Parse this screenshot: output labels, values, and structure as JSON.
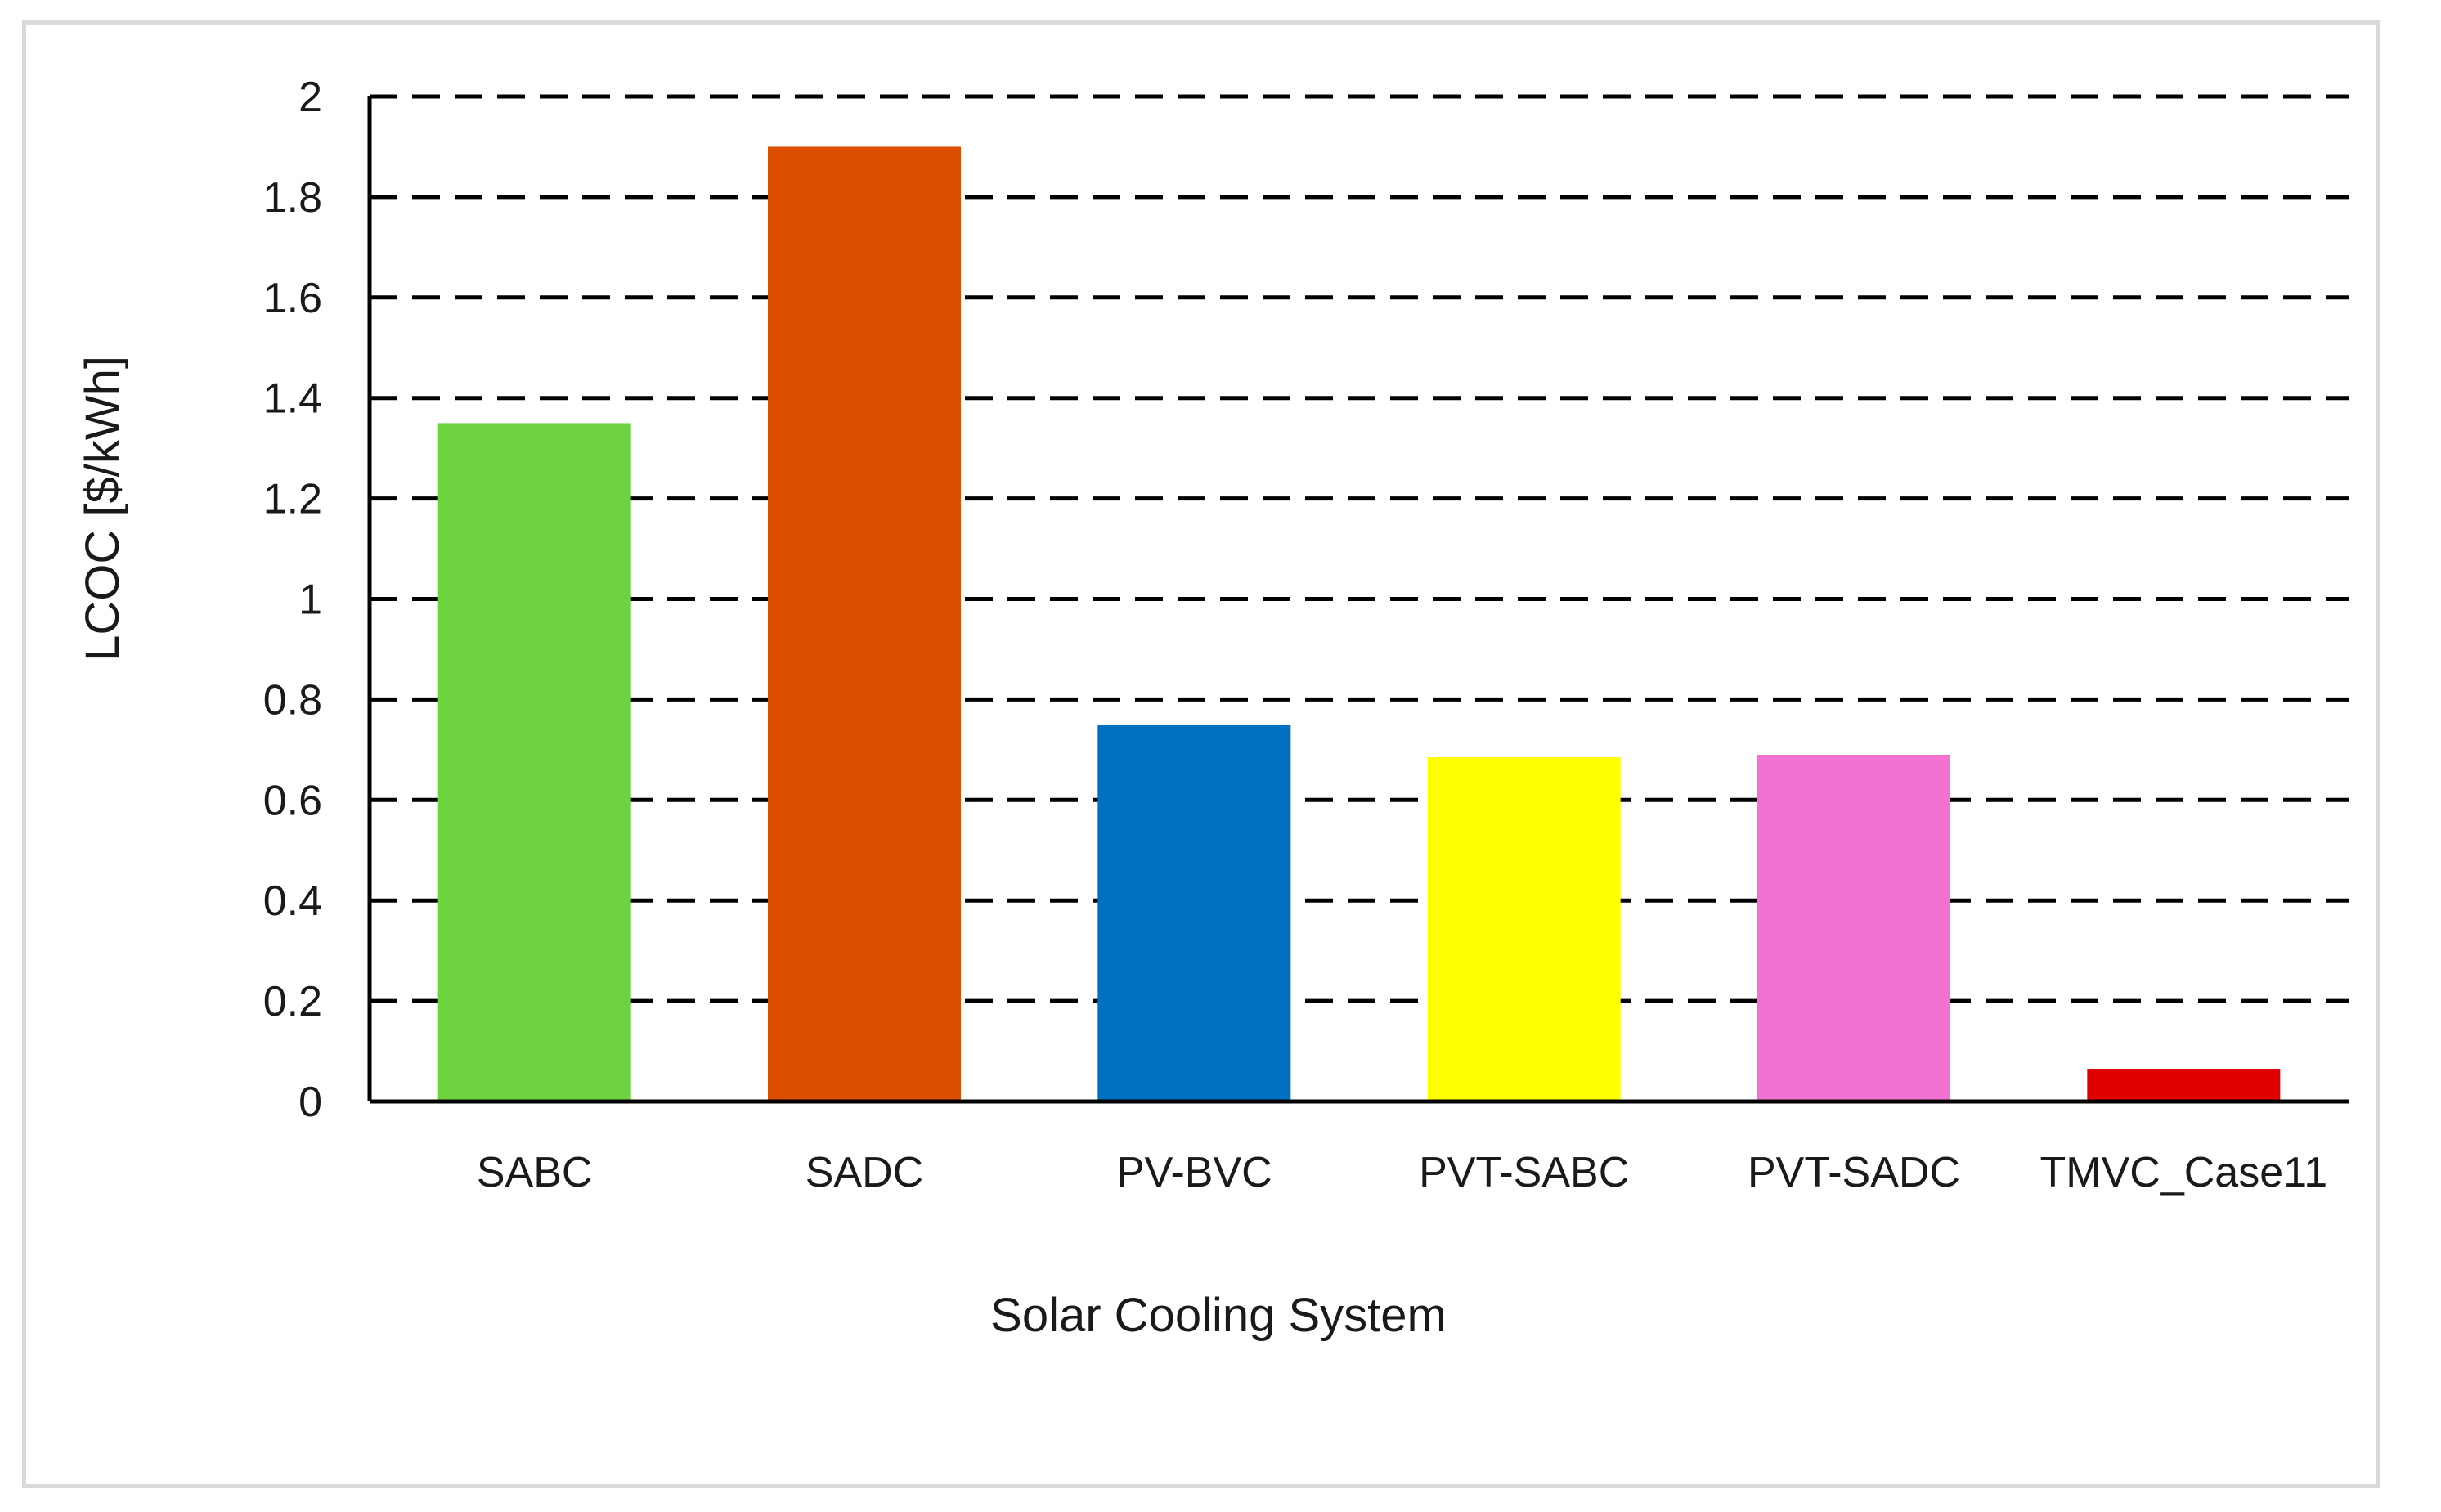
{
  "chart_data": {
    "type": "bar",
    "title": "",
    "xlabel": "Solar Cooling System",
    "ylabel": "LCOC [$/kWh]",
    "categories": [
      "SABC",
      "SADC",
      "PV-BVC",
      "PVT-SABC",
      "PVT-SADC",
      "TMVC_Case11"
    ],
    "values": [
      1.35,
      1.9,
      0.75,
      0.685,
      0.69,
      0.065
    ],
    "colors": [
      "#6dd43f",
      "#dc4f00",
      "#0070c0",
      "#ffff00",
      "#f371d0",
      "#e00000"
    ],
    "ylim": [
      0,
      2
    ],
    "yticks": [
      0,
      0.2,
      0.4,
      0.6,
      0.8,
      1,
      1.2,
      1.4,
      1.6,
      1.8,
      2
    ],
    "ytick_labels": [
      "0",
      "0.2",
      "0.4",
      "0.6",
      "0.8",
      "1",
      "1.2",
      "1.4",
      "1.6",
      "1.8",
      "2"
    ],
    "grid": "horizontal-dashed",
    "legend": "none"
  }
}
